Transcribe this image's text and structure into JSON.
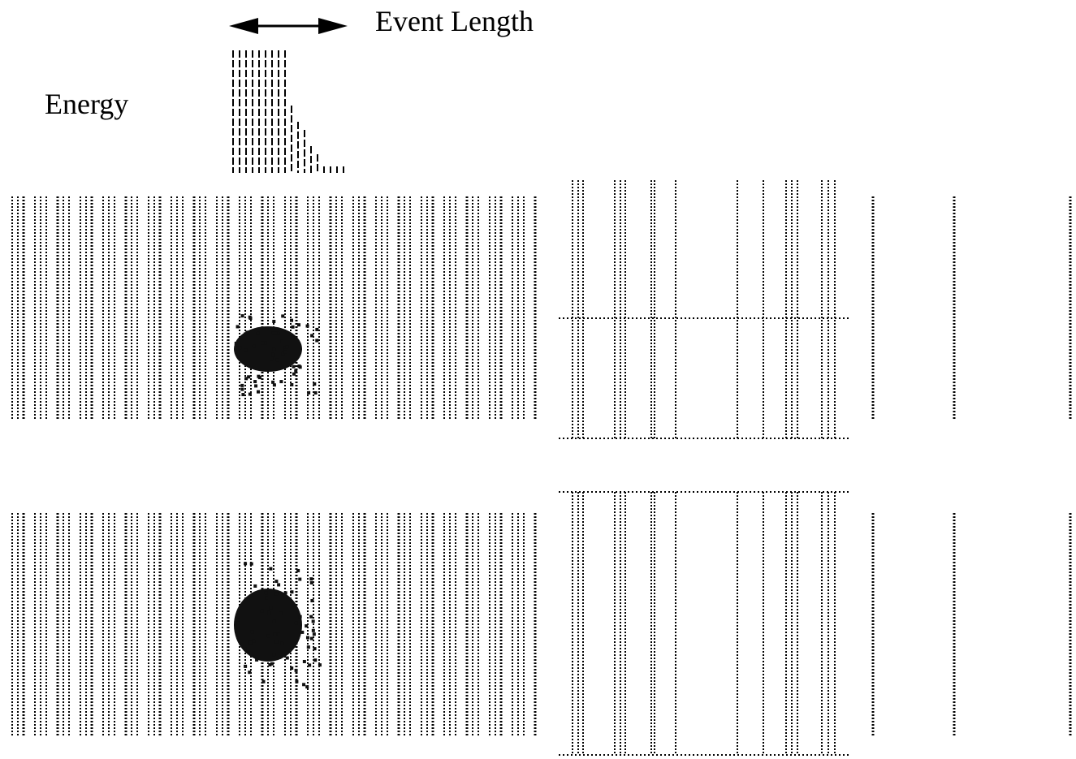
{
  "labels": {
    "event_length": "Event Length",
    "energy": "Energy"
  }
}
